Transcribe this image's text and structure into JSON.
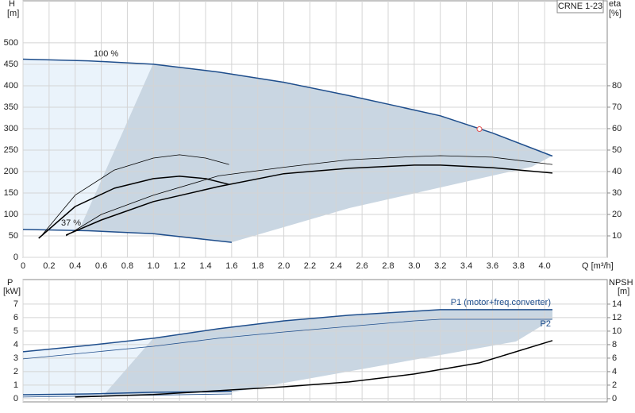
{
  "chart_data": [
    {
      "type": "line",
      "title": "CRNE 1-23",
      "xlabel": "Q [m³/h]",
      "ylabel": "H",
      "ylabel_unit": "[m]",
      "y2label": "eta",
      "y2label_unit": "[%]",
      "annotations": [
        "100 %",
        "37 %"
      ],
      "xlim": [
        0,
        4.48
      ],
      "xticks": [
        0,
        0.2,
        0.4,
        0.6,
        0.8,
        {
          "value": 1,
          "label": "1.0"
        },
        1.2,
        1.4,
        1.6,
        1.8,
        {
          "value": 2,
          "label": "2.0"
        },
        2.2,
        2.4,
        2.6,
        2.8,
        {
          "value": 3,
          "label": "3.0"
        },
        3.2,
        3.4,
        3.6,
        3.8,
        {
          "value": 4,
          "label": "4.0"
        }
      ],
      "ylim": [
        0,
        598
      ],
      "yticks": [
        0,
        50,
        100,
        150,
        200,
        250,
        300,
        350,
        400,
        450,
        500
      ],
      "y2lim": [
        0,
        119.6
      ],
      "y2ticks": [
        10,
        20,
        30,
        40,
        50,
        60,
        70,
        80
      ],
      "grid": true,
      "series": [
        {
          "color": "#1f4e8c",
          "linewidth": 1.5,
          "x": [
            0,
            0.5,
            1.0,
            1.5,
            2.0,
            2.5,
            2.8,
            3.2,
            3.6,
            4.06
          ],
          "values": [
            462,
            458,
            450,
            432,
            408,
            377,
            357,
            330,
            290,
            236
          ]
        },
        {
          "color": "#1f4e8c",
          "linewidth": 1.5,
          "x": [
            0,
            0.5,
            1.0,
            1.6
          ],
          "values": [
            65,
            62,
            55,
            35
          ]
        },
        {
          "color": "#000000",
          "linewidth": 0.8,
          "axis": "y2",
          "x": [
            0.33,
            0.6,
            1.0,
            1.5,
            2.0,
            2.5,
            3.0,
            3.2,
            3.6,
            4.06
          ],
          "values": [
            10,
            20,
            29,
            38,
            42,
            45.5,
            47,
            47.4,
            46.7,
            43.3
          ]
        },
        {
          "color": "#000000",
          "linewidth": 1.5,
          "axis": "y2",
          "x": [
            0.33,
            0.6,
            1.0,
            1.5,
            2.0,
            2.5,
            3.0,
            3.2,
            3.6,
            4.06
          ],
          "values": [
            10.4,
            17.4,
            26,
            33,
            39,
            41.5,
            43,
            43,
            41.8,
            39.3
          ]
        },
        {
          "color": "#000000",
          "linewidth": 0.8,
          "axis": "y2",
          "x": [
            0.15,
            0.4,
            0.7,
            1.0,
            1.2,
            1.4,
            1.58
          ],
          "values": [
            10.7,
            29,
            40.7,
            46.3,
            47.8,
            46.3,
            43.3
          ]
        },
        {
          "color": "#000000",
          "linewidth": 1.5,
          "axis": "y2",
          "x": [
            0.12,
            0.4,
            0.7,
            1.0,
            1.2,
            1.4,
            1.58
          ],
          "values": [
            8.9,
            23.7,
            32.2,
            36.7,
            37.8,
            36.7,
            34
          ]
        }
      ],
      "marker": {
        "x": 3.5,
        "y": 299,
        "color": "#e05050"
      }
    },
    {
      "type": "line",
      "ylabel": "P",
      "ylabel_unit": "[kW]",
      "y2label": "NPSH",
      "y2label_unit": "[m]",
      "xlim": [
        0,
        4.48
      ],
      "ylim": [
        -0.24,
        8.82
      ],
      "yticks": [
        0,
        1,
        2,
        3,
        4,
        5,
        6,
        7
      ],
      "y2lim": [
        -0.48,
        17.64
      ],
      "y2ticks": [
        0,
        2,
        4,
        6,
        8,
        10,
        12,
        14
      ],
      "grid": true,
      "series": [
        {
          "name": "P1 (motor+freq.converter)",
          "color": "#1f4e8c",
          "linewidth": 1.5,
          "x": [
            0,
            0.5,
            1.0,
            1.5,
            2.0,
            2.5,
            3.0,
            3.2,
            4.06
          ],
          "values": [
            3.47,
            3.94,
            4.47,
            5.18,
            5.76,
            6.18,
            6.47,
            6.59,
            6.59
          ]
        },
        {
          "name": "P2",
          "color": "#1f4e8c",
          "linewidth": 0.8,
          "x": [
            0,
            0.5,
            1.0,
            1.5,
            2.0,
            2.5,
            3.0,
            3.2,
            4.06
          ],
          "values": [
            2.94,
            3.41,
            3.88,
            4.47,
            4.94,
            5.35,
            5.76,
            5.88,
            5.88
          ]
        },
        {
          "color": "#1f4e8c",
          "linewidth": 1.5,
          "x": [
            0,
            0.5,
            1.0,
            1.6
          ],
          "values": [
            0.29,
            0.35,
            0.47,
            0.53
          ]
        },
        {
          "color": "#1f4e8c",
          "linewidth": 0.8,
          "x": [
            0,
            1.6
          ],
          "values": [
            0.12,
            0.35
          ]
        },
        {
          "color": "#000000",
          "linewidth": 1.5,
          "axis": "y2",
          "x": [
            0.4,
            1.0,
            1.6,
            2.0,
            2.5,
            3.0,
            3.5,
            4.06
          ],
          "values": [
            0.24,
            0.6,
            1.3,
            1.76,
            2.47,
            3.65,
            5.3,
            8.6
          ]
        }
      ]
    }
  ]
}
